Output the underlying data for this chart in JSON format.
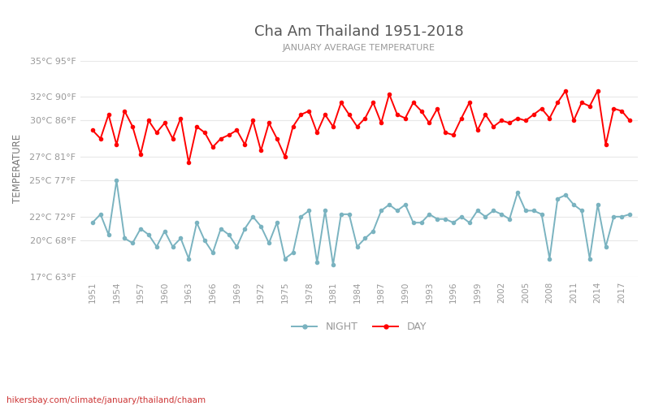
{
  "title": "Cha Am Thailand 1951-2018",
  "subtitle": "JANUARY AVERAGE TEMPERATURE",
  "ylabel": "TEMPERATURE",
  "watermark": "hikersbay.com/climate/january/thailand/chaam",
  "years": [
    1951,
    1952,
    1953,
    1954,
    1955,
    1956,
    1957,
    1958,
    1959,
    1960,
    1961,
    1962,
    1963,
    1964,
    1965,
    1966,
    1967,
    1968,
    1969,
    1970,
    1971,
    1972,
    1973,
    1974,
    1975,
    1976,
    1977,
    1978,
    1979,
    1980,
    1981,
    1982,
    1983,
    1984,
    1985,
    1986,
    1987,
    1988,
    1989,
    1990,
    1991,
    1992,
    1993,
    1994,
    1995,
    1996,
    1997,
    1998,
    1999,
    2000,
    2001,
    2002,
    2003,
    2004,
    2005,
    2006,
    2007,
    2008,
    2009,
    2010,
    2011,
    2012,
    2013,
    2014,
    2015,
    2016,
    2017,
    2018
  ],
  "day_temps": [
    29.2,
    28.5,
    30.5,
    28.0,
    30.8,
    29.5,
    27.2,
    30.0,
    29.0,
    29.8,
    28.5,
    30.2,
    26.5,
    29.5,
    29.0,
    27.8,
    28.5,
    28.8,
    29.2,
    28.0,
    30.0,
    27.5,
    29.8,
    28.5,
    27.0,
    29.5,
    30.5,
    30.8,
    29.0,
    30.5,
    29.5,
    31.5,
    30.5,
    29.5,
    30.2,
    31.5,
    29.8,
    32.2,
    30.5,
    30.2,
    31.5,
    30.8,
    29.8,
    31.0,
    29.0,
    28.8,
    30.2,
    31.5,
    29.2,
    30.5,
    29.5,
    30.0,
    29.8,
    30.2,
    30.0,
    30.5,
    31.0,
    30.2,
    31.5,
    32.5,
    30.0,
    31.5,
    31.2,
    32.5,
    28.0,
    31.0,
    30.8,
    30.0
  ],
  "night_temps": [
    21.5,
    22.2,
    20.5,
    25.0,
    20.2,
    19.8,
    21.0,
    20.5,
    19.5,
    20.8,
    19.5,
    20.2,
    18.5,
    21.5,
    20.0,
    19.0,
    21.0,
    20.5,
    19.5,
    21.0,
    22.0,
    21.2,
    19.8,
    21.5,
    18.5,
    19.0,
    22.0,
    22.5,
    18.2,
    22.5,
    18.0,
    22.2,
    22.2,
    19.5,
    20.2,
    20.8,
    22.5,
    23.0,
    22.5,
    23.0,
    21.5,
    21.5,
    22.2,
    21.8,
    21.8,
    21.5,
    22.0,
    21.5,
    22.5,
    22.0,
    22.5,
    22.2,
    21.8,
    24.0,
    22.5,
    22.5,
    22.2,
    18.5,
    23.5,
    23.8,
    23.0,
    22.5,
    18.5,
    23.0,
    19.5,
    22.0,
    22.0,
    22.2
  ],
  "day_color": "#ff0000",
  "night_color": "#7ab3c0",
  "title_color": "#555555",
  "subtitle_color": "#999999",
  "ylabel_color": "#777777",
  "tick_color": "#999999",
  "grid_color": "#e8e8e8",
  "background_color": "#ffffff",
  "ylim_min": 17,
  "ylim_max": 35,
  "yticks_c": [
    17,
    20,
    22,
    25,
    27,
    30,
    32,
    35
  ],
  "yticks_f": [
    63,
    68,
    72,
    77,
    81,
    86,
    90,
    95
  ],
  "marker_size": 3.0,
  "line_width": 1.4,
  "watermark_color": "#cc3333",
  "legend_night_label": "NIGHT",
  "legend_day_label": "DAY"
}
